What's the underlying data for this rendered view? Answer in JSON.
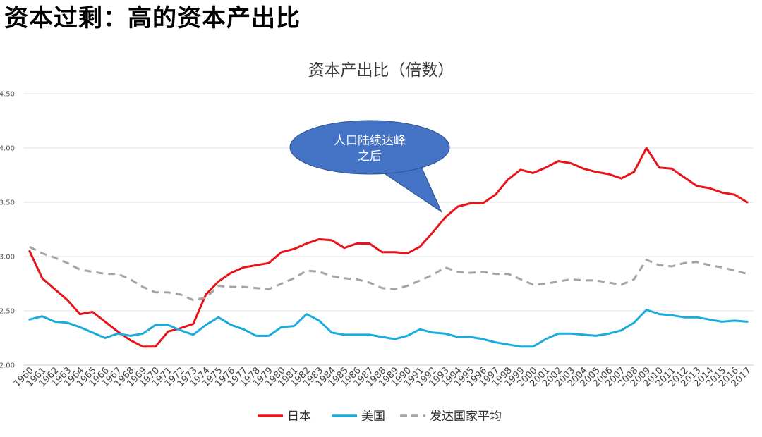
{
  "page_title": "资本过剩：高的资本产出比",
  "chart_data": {
    "type": "line",
    "title": "资本产出比（倍数）",
    "xlabel": "",
    "ylabel": "",
    "ylim": [
      2.0,
      4.5
    ],
    "yticks": [
      "2.00",
      "2.50",
      "3.00",
      "3.50",
      "4.00",
      "4.50"
    ],
    "grid": true,
    "legend": "bottom",
    "x": [
      "1960",
      "1961",
      "1962",
      "1963",
      "1964",
      "1965",
      "1966",
      "1967",
      "1968",
      "1969",
      "1970",
      "1971",
      "1972",
      "1973",
      "1974",
      "1975",
      "1976",
      "1977",
      "1978",
      "1979",
      "1980",
      "1981",
      "1982",
      "1983",
      "1984",
      "1985",
      "1986",
      "1987",
      "1988",
      "1989",
      "1990",
      "1991",
      "1992",
      "1993",
      "1994",
      "1995",
      "1996",
      "1997",
      "1998",
      "1999",
      "2000",
      "2001",
      "2002",
      "2003",
      "2004",
      "2005",
      "2006",
      "2007",
      "2008",
      "2009",
      "2010",
      "2011",
      "2012",
      "2013",
      "2014",
      "2015",
      "2016",
      "2017"
    ],
    "series": [
      {
        "name": "日本",
        "color": "#e8141a",
        "dash": "solid",
        "values": [
          3.05,
          2.8,
          2.7,
          2.6,
          2.47,
          2.49,
          2.4,
          2.31,
          2.23,
          2.17,
          2.17,
          2.31,
          2.34,
          2.38,
          2.65,
          2.77,
          2.85,
          2.9,
          2.92,
          2.94,
          3.04,
          3.07,
          3.12,
          3.16,
          3.15,
          3.08,
          3.12,
          3.12,
          3.04,
          3.04,
          3.03,
          3.09,
          3.22,
          3.36,
          3.46,
          3.49,
          3.49,
          3.57,
          3.71,
          3.8,
          3.77,
          3.82,
          3.88,
          3.86,
          3.81,
          3.78,
          3.76,
          3.72,
          3.78,
          4.0,
          3.82,
          3.81,
          3.73,
          3.65,
          3.63,
          3.59,
          3.57,
          3.5
        ]
      },
      {
        "name": "美国",
        "color": "#1aabdf",
        "dash": "solid",
        "values": [
          2.42,
          2.45,
          2.4,
          2.39,
          2.35,
          2.3,
          2.25,
          2.29,
          2.27,
          2.29,
          2.37,
          2.37,
          2.32,
          2.28,
          2.37,
          2.44,
          2.37,
          2.33,
          2.27,
          2.27,
          2.35,
          2.36,
          2.47,
          2.41,
          2.3,
          2.28,
          2.28,
          2.28,
          2.26,
          2.24,
          2.27,
          2.33,
          2.3,
          2.29,
          2.26,
          2.26,
          2.24,
          2.21,
          2.19,
          2.17,
          2.17,
          2.24,
          2.29,
          2.29,
          2.28,
          2.27,
          2.29,
          2.32,
          2.39,
          2.51,
          2.47,
          2.46,
          2.44,
          2.44,
          2.42,
          2.4,
          2.41,
          2.4
        ]
      },
      {
        "name": "发达国家平均",
        "color": "#a5a5a5",
        "dash": "dashed",
        "values": [
          3.09,
          3.03,
          2.99,
          2.94,
          2.88,
          2.86,
          2.84,
          2.84,
          2.79,
          2.72,
          2.67,
          2.67,
          2.65,
          2.6,
          2.62,
          2.73,
          2.72,
          2.72,
          2.71,
          2.7,
          2.75,
          2.8,
          2.87,
          2.86,
          2.82,
          2.8,
          2.79,
          2.76,
          2.71,
          2.7,
          2.73,
          2.78,
          2.83,
          2.9,
          2.86,
          2.85,
          2.86,
          2.84,
          2.84,
          2.79,
          2.74,
          2.75,
          2.77,
          2.79,
          2.78,
          2.78,
          2.76,
          2.74,
          2.79,
          2.97,
          2.92,
          2.91,
          2.94,
          2.95,
          2.92,
          2.9,
          2.87,
          2.84
        ]
      }
    ],
    "annotation": {
      "lines": [
        "人口陆续达峰",
        "之后"
      ],
      "color": "#4472c4",
      "at_x": "1993",
      "at_y": 3.36
    }
  }
}
